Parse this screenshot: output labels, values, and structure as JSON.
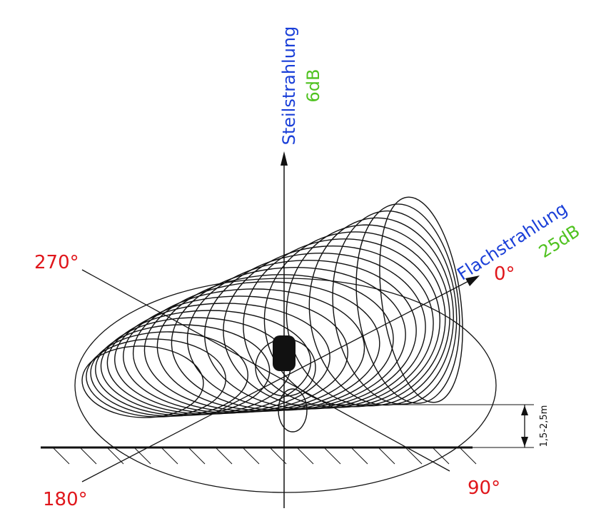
{
  "labels": {
    "vertical": "Steilstrahlung",
    "vertical_gain": "6dB",
    "horizontal": "Flachstrahlung",
    "horizontal_gain": "25dB"
  },
  "angles": {
    "a270": "270°",
    "a0": "0°",
    "a180": "180°",
    "a90": "90°"
  },
  "height": "1,5-2,5m"
}
